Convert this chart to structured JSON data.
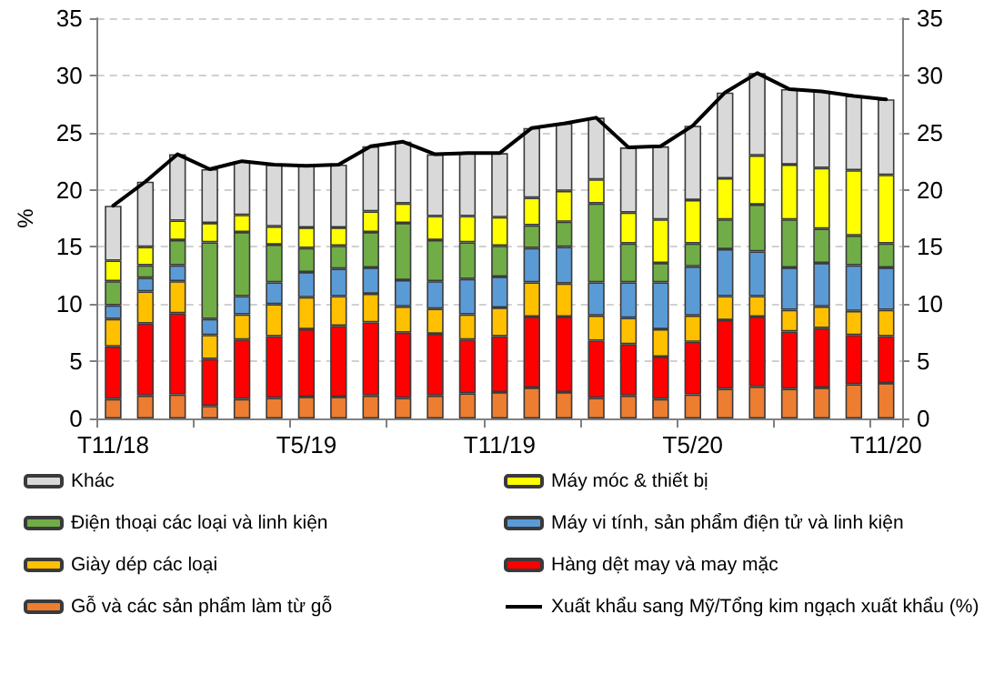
{
  "chart_data": {
    "type": "bar",
    "stacked": true,
    "ylabel": "%",
    "categories": [
      "T11/18",
      null,
      null,
      null,
      null,
      null,
      "T5/19",
      null,
      null,
      null,
      null,
      null,
      "T11/19",
      null,
      null,
      null,
      null,
      null,
      "T5/20",
      null,
      null,
      null,
      null,
      null,
      "T11/20"
    ],
    "series": [
      {
        "name": "Gỗ và các sản phẩm làm từ gỗ",
        "color": "#ed7d31",
        "values": [
          1.7,
          2.0,
          2.1,
          1.1,
          1.7,
          1.8,
          1.9,
          1.9,
          2.0,
          1.8,
          2.0,
          2.2,
          2.3,
          2.7,
          2.3,
          1.8,
          2.0,
          1.7,
          2.1,
          2.6,
          2.8,
          2.6,
          2.7,
          3.0,
          3.1
        ]
      },
      {
        "name": "Hàng dệt may và may mặc",
        "color": "#ff0000",
        "values": [
          4.6,
          6.3,
          7.1,
          4.1,
          5.2,
          5.4,
          5.9,
          6.2,
          6.4,
          5.7,
          5.4,
          4.7,
          4.9,
          6.2,
          6.6,
          5.0,
          4.5,
          3.7,
          4.6,
          6.0,
          6.1,
          5.0,
          5.2,
          4.3,
          4.1
        ]
      },
      {
        "name": "Giày dép các loại",
        "color": "#ffc000",
        "values": [
          2.4,
          2.8,
          2.8,
          2.1,
          2.2,
          2.8,
          2.8,
          2.6,
          2.5,
          2.3,
          2.2,
          2.2,
          2.5,
          3.0,
          2.9,
          2.2,
          2.3,
          2.4,
          2.3,
          2.1,
          1.8,
          1.9,
          1.9,
          2.1,
          2.3
        ]
      },
      {
        "name": "Máy vi tính, sản phẩm điện tử và linh kiện",
        "color": "#5b9bd5",
        "values": [
          1.2,
          1.2,
          1.4,
          1.4,
          1.6,
          1.9,
          2.2,
          2.4,
          2.3,
          2.3,
          2.4,
          3.1,
          2.7,
          3.0,
          3.2,
          2.9,
          3.1,
          4.1,
          4.3,
          4.1,
          3.9,
          3.7,
          3.8,
          4.0,
          3.7
        ]
      },
      {
        "name": "Điện thoại các loại và linh kiện",
        "color": "#70ad47",
        "values": [
          2.1,
          1.1,
          2.2,
          6.7,
          5.6,
          3.3,
          2.1,
          2.0,
          3.1,
          5.0,
          3.6,
          3.2,
          2.7,
          2.0,
          2.2,
          6.9,
          3.4,
          1.7,
          2.0,
          2.6,
          4.1,
          4.2,
          3.0,
          2.6,
          2.1
        ]
      },
      {
        "name": "Máy móc & thiết bị",
        "color": "#ffff00",
        "values": [
          1.8,
          1.6,
          1.7,
          1.7,
          1.5,
          1.6,
          1.8,
          1.6,
          1.8,
          1.7,
          2.1,
          2.3,
          2.5,
          2.4,
          2.7,
          2.1,
          2.7,
          3.8,
          3.8,
          3.6,
          4.3,
          4.8,
          5.3,
          5.7,
          6.0
        ]
      },
      {
        "name": "Khác",
        "color": "#d9d9d9",
        "values": [
          4.8,
          5.7,
          5.8,
          4.7,
          4.7,
          5.4,
          5.4,
          5.5,
          5.7,
          5.4,
          5.4,
          5.5,
          5.6,
          6.1,
          5.9,
          5.4,
          5.7,
          6.4,
          6.5,
          7.5,
          7.2,
          6.6,
          6.7,
          6.5,
          6.6
        ]
      },
      {
        "name": "Xuất khẩu sang Mỹ/Tổng kim ngạch xuất khẩu (%)",
        "type": "line",
        "color": "#000000",
        "marker": "none",
        "values": [
          18.6,
          20.7,
          23.1,
          21.8,
          22.5,
          22.2,
          22.1,
          22.2,
          23.8,
          24.2,
          23.1,
          23.2,
          23.2,
          25.4,
          25.8,
          26.3,
          23.7,
          23.8,
          25.6,
          28.5,
          30.2,
          28.8,
          28.6,
          28.2,
          27.9
        ]
      }
    ],
    "ylim": [
      0,
      35
    ],
    "yticks": [
      0,
      5,
      10,
      15,
      20,
      25,
      30,
      35
    ],
    "y2lim": [
      0,
      35
    ],
    "y2ticks": [
      0,
      5,
      10,
      15,
      20,
      25,
      30,
      35
    ],
    "grid": "y",
    "legend": "bottom"
  }
}
